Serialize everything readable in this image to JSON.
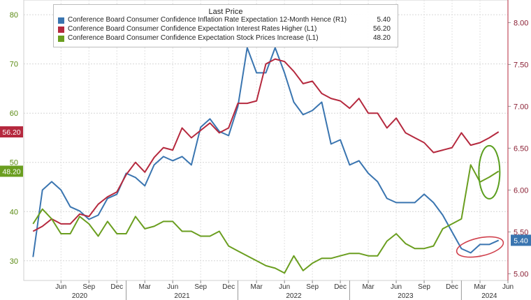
{
  "chart_data": {
    "type": "line",
    "legend": {
      "title": "Last Price",
      "placement": "top-left",
      "entries": [
        {
          "name": "Conference Board Consumer Confidence Inflation Rate Expectation 12-Month Hence",
          "axis_tag": "(R1)",
          "last": "5.40",
          "color": "#3a75b0"
        },
        {
          "name": "Conference Board Consumer Confidence Expectation Interest Rates Higher",
          "axis_tag": "(L1)",
          "last": "56.20",
          "color": "#b5293e"
        },
        {
          "name": "Conference Board Consumer Confidence Expectation Stock Prices Increase",
          "axis_tag": "(L1)",
          "last": "48.20",
          "color": "#6a9e1f"
        }
      ]
    },
    "x": [
      "2020-03",
      "2020-04",
      "2020-05",
      "2020-06",
      "2020-07",
      "2020-08",
      "2020-09",
      "2020-10",
      "2020-11",
      "2020-12",
      "2021-01",
      "2021-02",
      "2021-03",
      "2021-04",
      "2021-05",
      "2021-06",
      "2021-07",
      "2021-08",
      "2021-09",
      "2021-10",
      "2021-11",
      "2021-12",
      "2022-01",
      "2022-02",
      "2022-03",
      "2022-04",
      "2022-05",
      "2022-06",
      "2022-07",
      "2022-08",
      "2022-09",
      "2022-10",
      "2022-11",
      "2022-12",
      "2023-01",
      "2023-02",
      "2023-03",
      "2023-04",
      "2023-05",
      "2023-06",
      "2023-07",
      "2023-08",
      "2023-09",
      "2023-10",
      "2023-11",
      "2023-12",
      "2024-01",
      "2024-02",
      "2024-03",
      "2024-04",
      "2024-05"
    ],
    "series": [
      {
        "name": "Conference Board Consumer Confidence Inflation Rate Expectation 12-Month Hence",
        "axis": "right",
        "color": "#3a75b0",
        "values": [
          5.2,
          6.0,
          6.1,
          6.0,
          5.8,
          5.75,
          5.65,
          5.7,
          5.9,
          5.95,
          6.2,
          6.15,
          6.05,
          6.3,
          6.4,
          6.35,
          6.4,
          6.3,
          6.75,
          6.85,
          6.7,
          6.65,
          7.0,
          7.7,
          7.4,
          7.4,
          7.7,
          7.4,
          7.05,
          6.9,
          6.95,
          7.05,
          6.55,
          6.6,
          6.3,
          6.35,
          6.2,
          6.1,
          5.9,
          5.85,
          5.85,
          5.85,
          5.95,
          5.85,
          5.7,
          5.5,
          5.3,
          5.25,
          5.35,
          5.35,
          5.4
        ]
      },
      {
        "name": "Conference Board Consumer Confidence Expectation Interest Rates Higher",
        "axis": "left",
        "color": "#b5293e",
        "values": [
          36.0,
          37.0,
          38.5,
          37.5,
          37.5,
          39.5,
          39.0,
          41.5,
          43.0,
          44.0,
          47.5,
          50.0,
          48.0,
          51.0,
          53.0,
          52.5,
          57.0,
          55.0,
          56.5,
          58.0,
          56.0,
          57.0,
          62.0,
          62.0,
          62.5,
          70.0,
          71.0,
          70.5,
          68.5,
          66.0,
          66.5,
          64.0,
          63.0,
          62.5,
          61.0,
          63.0,
          60.0,
          60.0,
          57.0,
          59.0,
          56.0,
          55.0,
          54.0,
          52.0,
          52.5,
          53.0,
          56.0,
          53.5,
          54.0,
          55.0,
          56.2
        ]
      },
      {
        "name": "Conference Board Consumer Confidence Expectation Stock Prices Increase",
        "axis": "left",
        "color": "#6a9e1f",
        "values": [
          37.5,
          40.5,
          38.5,
          35.5,
          35.5,
          39.0,
          37.5,
          35.0,
          38.0,
          35.5,
          35.5,
          39.0,
          36.5,
          37.0,
          38.0,
          38.0,
          36.0,
          36.0,
          35.0,
          35.0,
          36.0,
          33.0,
          32.0,
          31.0,
          30.0,
          29.0,
          28.5,
          27.5,
          31.0,
          28.0,
          29.5,
          30.5,
          30.5,
          31.0,
          31.5,
          31.5,
          31.0,
          31.0,
          34.0,
          35.5,
          33.5,
          32.5,
          32.5,
          33.0,
          36.5,
          37.5,
          38.5,
          49.5,
          46.0,
          47.0,
          48.2
        ]
      }
    ],
    "x_tick_labels": [
      "Jun",
      "Sep",
      "Dec",
      "Mar",
      "Jun",
      "Sep",
      "Dec",
      "Mar",
      "Jun",
      "Sep",
      "Dec",
      "Mar",
      "Jun",
      "Sep",
      "Dec",
      "Mar",
      "Jun"
    ],
    "x_tick_dates": [
      "2020-06",
      "2020-09",
      "2020-12",
      "2021-03",
      "2021-06",
      "2021-09",
      "2021-12",
      "2022-03",
      "2022-06",
      "2022-09",
      "2022-12",
      "2023-03",
      "2023-06",
      "2023-09",
      "2023-12",
      "2024-03",
      "2024-06"
    ],
    "year_labels": [
      {
        "label": "2020",
        "date": "2020-08"
      },
      {
        "label": "2021",
        "date": "2021-07"
      },
      {
        "label": "2022",
        "date": "2022-07"
      },
      {
        "label": "2023",
        "date": "2023-07"
      },
      {
        "label": "2024",
        "date": "2024-04"
      }
    ],
    "year_separators": [
      "2021-01",
      "2022-01",
      "2023-01",
      "2024-01"
    ],
    "left_axis": {
      "ticks": [
        "30",
        "40",
        "50",
        "60",
        "70",
        "80"
      ],
      "ylim": [
        26,
        83
      ]
    },
    "right_axis": {
      "ticks": [
        "5.00",
        "5.50",
        "6.00",
        "6.50",
        "7.00",
        "7.50",
        "8.00"
      ],
      "ylim": [
        4.92,
        8.27
      ]
    },
    "last_value_tags": [
      {
        "text": "56.20",
        "series": 1,
        "side": "left",
        "color": "#b5293e"
      },
      {
        "text": "48.20",
        "series": 2,
        "side": "left",
        "color": "#6a9e1f"
      },
      {
        "text": "5.40",
        "series": 0,
        "side": "right",
        "color": "#3a75b0"
      }
    ],
    "annotations": [
      {
        "shape": "ellipse",
        "color": "#5a9e1e",
        "around": "stock-prices-recent"
      },
      {
        "shape": "ellipse",
        "color": "#d0404c",
        "around": "inflation-expectation-recent"
      }
    ],
    "grid": true,
    "xlim": [
      "2020-02",
      "2024-06"
    ]
  }
}
